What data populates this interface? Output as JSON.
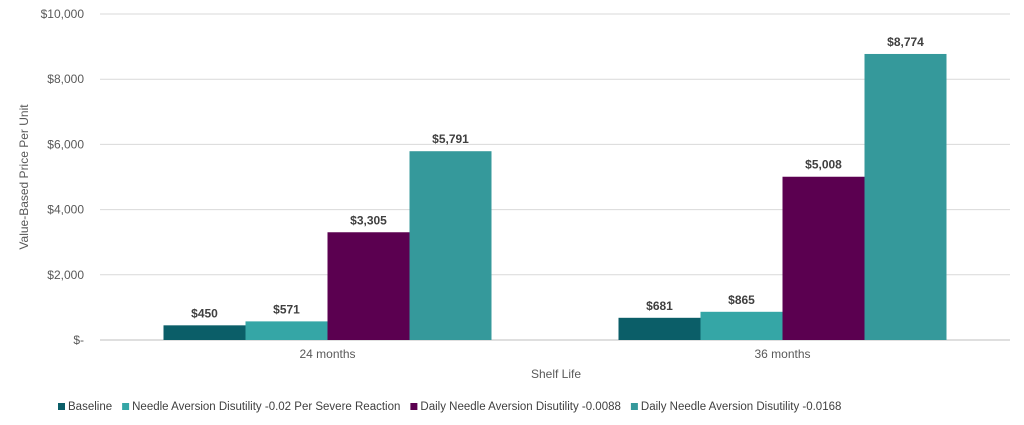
{
  "chart_data": {
    "type": "bar",
    "title": "",
    "xlabel": "Shelf Life",
    "ylabel": "Value-Based Price Per Unit",
    "categories": [
      "24 months",
      "36 months"
    ],
    "ylim": [
      0,
      10000
    ],
    "yticks": [
      0,
      2000,
      4000,
      6000,
      8000,
      10000
    ],
    "ytick_labels": [
      "$-",
      "$2,000",
      "$4,000",
      "$6,000",
      "$8,000",
      "$10,000"
    ],
    "grid": true,
    "legend_position": "bottom",
    "series": [
      {
        "name": "Baseline",
        "color": "#0b5e68",
        "values": [
          450,
          681
        ],
        "labels": [
          "$450",
          "$681"
        ]
      },
      {
        "name": "Needle Aversion Disutility -0.02 Per Severe Reaction",
        "color": "#35a6a6",
        "values": [
          571,
          865
        ],
        "labels": [
          "$571",
          "$865"
        ]
      },
      {
        "name": "Daily Needle Aversion Disutility -0.0088",
        "color": "#5b0050",
        "values": [
          3305,
          5008
        ],
        "labels": [
          "$3,305",
          "$5,008"
        ]
      },
      {
        "name": "Daily Needle Aversion Disutility -0.0168",
        "color": "#35999b",
        "values": [
          5791,
          8774
        ],
        "labels": [
          "$5,791",
          "$8,774"
        ]
      }
    ]
  }
}
